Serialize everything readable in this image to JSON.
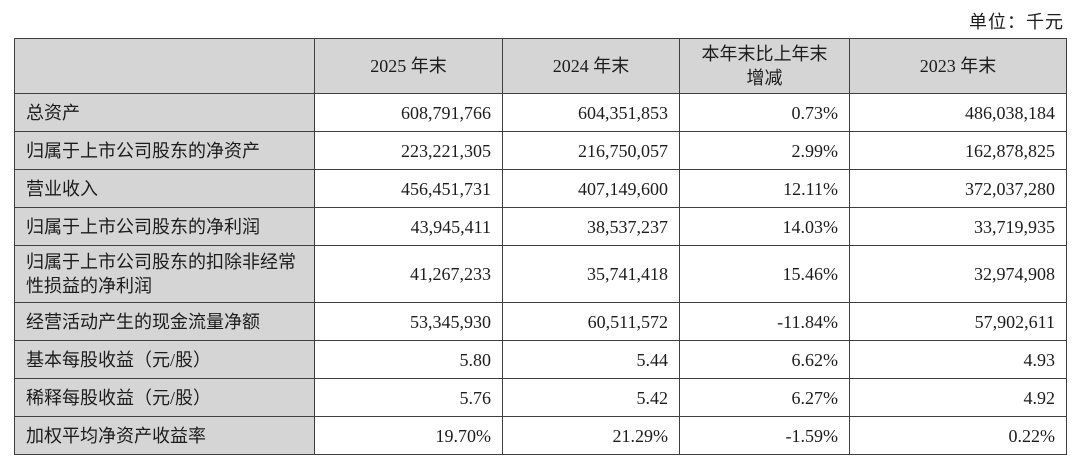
{
  "page": {
    "unit_label": "单位：千元"
  },
  "colors": {
    "header_bg": "#d5d5d5",
    "border": "#3f3f3f"
  },
  "table": {
    "columns": [
      "",
      "2025 年末",
      "2024 年末",
      "本年末比上年末增减",
      "2023 年末"
    ],
    "rows": [
      {
        "label": "总资产",
        "y2025": "608,791,766",
        "y2024": "604,351,853",
        "change": "0.73%",
        "y2023": "486,038,184"
      },
      {
        "label": "归属于上市公司股东的净资产",
        "y2025": "223,221,305",
        "y2024": "216,750,057",
        "change": "2.99%",
        "y2023": "162,878,825"
      },
      {
        "label": "营业收入",
        "y2025": "456,451,731",
        "y2024": "407,149,600",
        "change": "12.11%",
        "y2023": "372,037,280"
      },
      {
        "label": "归属于上市公司股东的净利润",
        "y2025": "43,945,411",
        "y2024": "38,537,237",
        "change": "14.03%",
        "y2023": "33,719,935"
      },
      {
        "label": "归属于上市公司股东的扣除非经常性损益的净利润",
        "y2025": "41,267,233",
        "y2024": "35,741,418",
        "change": "15.46%",
        "y2023": "32,974,908"
      },
      {
        "label": "经营活动产生的现金流量净额",
        "y2025": "53,345,930",
        "y2024": "60,511,572",
        "change": "-11.84%",
        "y2023": "57,902,611"
      },
      {
        "label": "基本每股收益（元/股）",
        "y2025": "5.80",
        "y2024": "5.44",
        "change": "6.62%",
        "y2023": "4.93"
      },
      {
        "label": "稀释每股收益（元/股）",
        "y2025": "5.76",
        "y2024": "5.42",
        "change": "6.27%",
        "y2023": "4.92"
      },
      {
        "label": "加权平均净资产收益率",
        "y2025": "19.70%",
        "y2024": "21.29%",
        "change": "-1.59%",
        "y2023": "0.22%"
      }
    ]
  }
}
